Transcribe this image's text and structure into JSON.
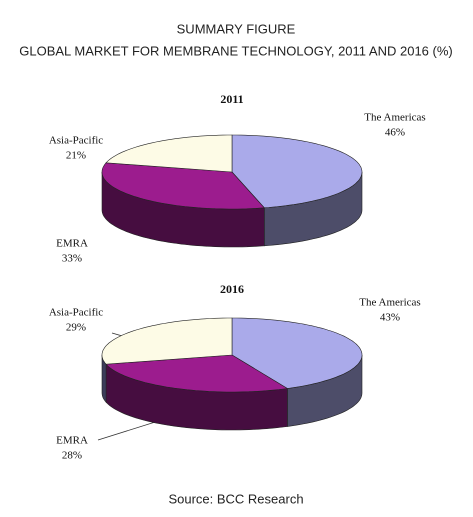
{
  "header": {
    "title": "SUMMARY FIGURE",
    "subtitle": "GLOBAL MARKET FOR MEMBRANE TECHNOLOGY, 2011 AND 2016 (%)"
  },
  "footer": {
    "source": "Source: BCC Research"
  },
  "chart_data": [
    {
      "type": "pie",
      "title": "2011",
      "categories": [
        "The Americas",
        "EMRA",
        "Asia-Pacific"
      ],
      "values": [
        46,
        33,
        21
      ],
      "value_labels": [
        "46%",
        "33%",
        "21%"
      ],
      "colors": [
        "#aaaaea",
        "#9c1c8e",
        "#fdfbe6"
      ]
    },
    {
      "type": "pie",
      "title": "2016",
      "categories": [
        "The Americas",
        "EMRA",
        "Asia-Pacific"
      ],
      "values": [
        43,
        28,
        29
      ],
      "value_labels": [
        "43%",
        "28%",
        "29%"
      ],
      "colors": [
        "#aaaaea",
        "#9c1c8e",
        "#fdfbe6"
      ]
    }
  ]
}
